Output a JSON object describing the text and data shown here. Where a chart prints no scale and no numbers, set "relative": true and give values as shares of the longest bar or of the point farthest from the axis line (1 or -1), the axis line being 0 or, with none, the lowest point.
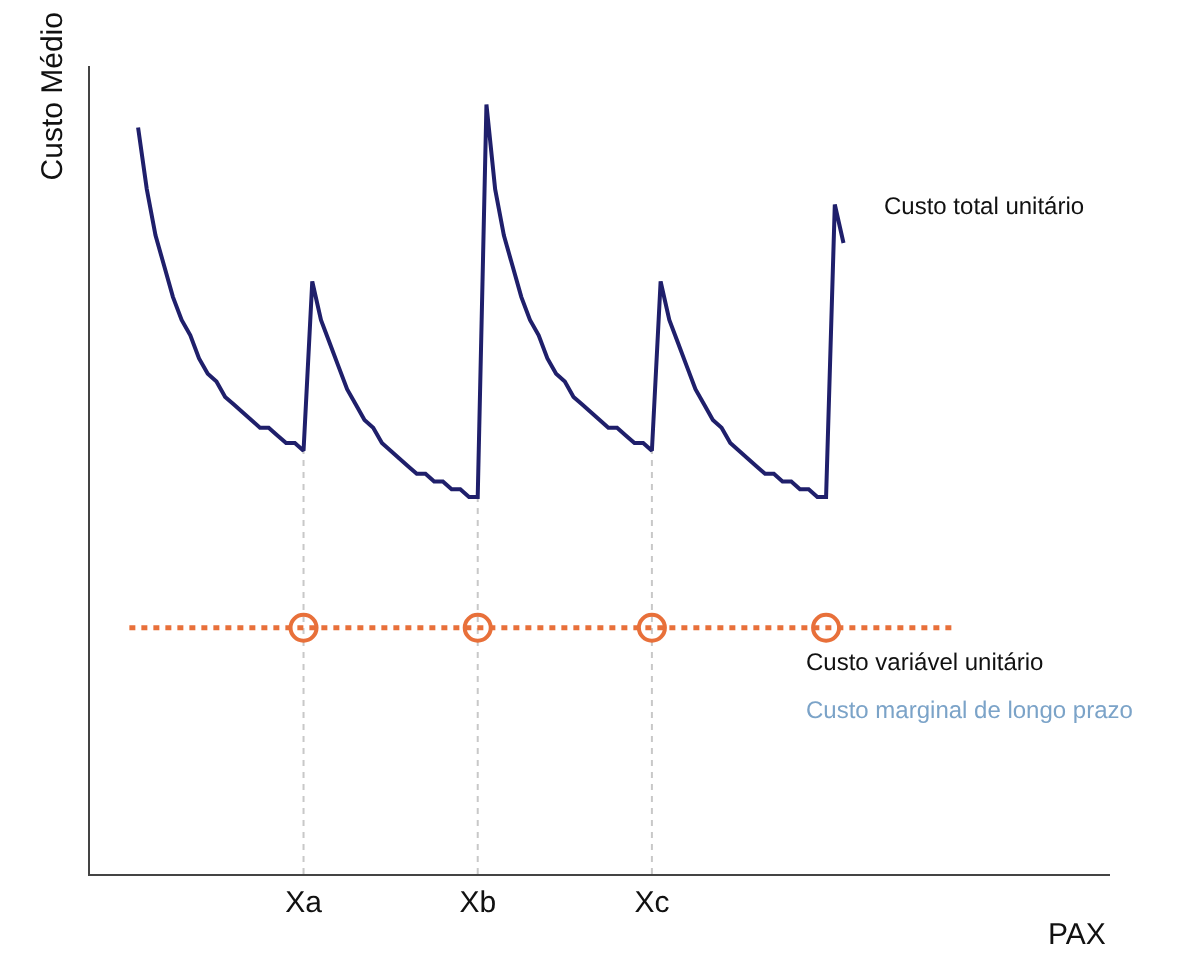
{
  "chart_data": {
    "type": "line",
    "relative": true,
    "xlabel": "PAX",
    "ylabel": "Custo Médio",
    "categories": [
      null,
      null,
      null,
      null,
      null,
      null,
      null,
      null,
      null,
      null,
      null,
      null,
      null,
      null,
      null,
      null,
      null,
      null,
      null,
      null,
      "Xa",
      null,
      null,
      null,
      null,
      null,
      null,
      null,
      null,
      null,
      null,
      null,
      null,
      null,
      null,
      null,
      null,
      null,
      null,
      null,
      "Xb",
      null,
      null,
      null,
      null,
      null,
      null,
      null,
      null,
      null,
      null,
      null,
      null,
      null,
      null,
      null,
      null,
      null,
      null,
      null,
      "Xc",
      null,
      null,
      null,
      null,
      null,
      null,
      null,
      null,
      null,
      null,
      null,
      null,
      null,
      null,
      null,
      null,
      null,
      null,
      null,
      null,
      null,
      null,
      null,
      null,
      null,
      null,
      null,
      null,
      null,
      null,
      null,
      null,
      null,
      null,
      null,
      null,
      null,
      null,
      null,
      null,
      null,
      null,
      null,
      null,
      null,
      null,
      null,
      null,
      null,
      null,
      null,
      null
    ],
    "series": [
      {
        "name": "Custo total unitário",
        "color": "#1f1f6b",
        "line_style": "solid",
        "marker": "none",
        "values": [
          null,
          0.97,
          0.89,
          0.83,
          0.79,
          0.75,
          0.72,
          0.7,
          0.67,
          0.65,
          0.64,
          0.62,
          0.61,
          0.6,
          0.59,
          0.58,
          0.58,
          0.57,
          0.56,
          0.56,
          0.55,
          0.77,
          0.72,
          0.69,
          0.66,
          0.63,
          0.61,
          0.59,
          0.58,
          0.56,
          0.55,
          0.54,
          0.53,
          0.52,
          0.52,
          0.51,
          0.51,
          0.5,
          0.5,
          0.49,
          0.49,
          1.0,
          0.89,
          0.83,
          0.79,
          0.75,
          0.72,
          0.7,
          0.67,
          0.65,
          0.64,
          0.62,
          0.61,
          0.6,
          0.59,
          0.58,
          0.58,
          0.57,
          0.56,
          0.56,
          0.55,
          0.77,
          0.72,
          0.69,
          0.66,
          0.63,
          0.61,
          0.59,
          0.58,
          0.56,
          0.55,
          0.54,
          0.53,
          0.52,
          0.52,
          0.51,
          0.51,
          0.5,
          0.5,
          0.49,
          0.49,
          0.87,
          0.82,
          null,
          null,
          null,
          null,
          null,
          null,
          null,
          null,
          null,
          null,
          null,
          null,
          null,
          null,
          null,
          null,
          null,
          null,
          null,
          null,
          null,
          null,
          null,
          null,
          null,
          null,
          null,
          null,
          null,
          null
        ]
      },
      {
        "name": "Custo variável unitário",
        "color": "#e8703a",
        "line_style": "dotted",
        "marker": "none",
        "values": [
          0.32,
          0.32,
          0.32,
          0.32,
          0.32,
          0.32,
          0.32,
          0.32,
          0.32,
          0.32,
          0.32,
          0.32,
          0.32,
          0.32,
          0.32,
          0.32,
          0.32,
          0.32,
          0.32,
          0.32,
          0.32,
          0.32,
          0.32,
          0.32,
          0.32,
          0.32,
          0.32,
          0.32,
          0.32,
          0.32,
          0.32,
          0.32,
          0.32,
          0.32,
          0.32,
          0.32,
          0.32,
          0.32,
          0.32,
          0.32,
          0.32,
          0.32,
          0.32,
          0.32,
          0.32,
          0.32,
          0.32,
          0.32,
          0.32,
          0.32,
          0.32,
          0.32,
          0.32,
          0.32,
          0.32,
          0.32,
          0.32,
          0.32,
          0.32,
          0.32,
          0.32,
          0.32,
          0.32,
          0.32,
          0.32,
          0.32,
          0.32,
          0.32,
          0.32,
          0.32,
          0.32,
          0.32,
          0.32,
          0.32,
          0.32,
          0.32,
          0.32,
          0.32,
          0.32,
          0.32,
          0.32,
          0.32,
          0.32,
          0.32,
          0.32,
          0.32,
          0.32,
          0.32,
          0.32,
          0.32,
          0.32,
          0.32,
          0.32,
          0.32,
          0.32,
          0.32,
          null,
          null,
          null,
          null,
          null,
          null,
          null,
          null,
          null,
          null,
          null,
          null,
          null,
          null,
          null,
          null,
          null
        ]
      },
      {
        "type": "scatter",
        "color": "#e8703a",
        "marker": "circle",
        "values": [
          null,
          null,
          null,
          null,
          null,
          null,
          null,
          null,
          null,
          null,
          null,
          null,
          null,
          null,
          null,
          null,
          null,
          null,
          null,
          null,
          0.32,
          null,
          null,
          null,
          null,
          null,
          null,
          null,
          null,
          null,
          null,
          null,
          null,
          null,
          null,
          null,
          null,
          null,
          null,
          null,
          0.32,
          null,
          null,
          null,
          null,
          null,
          null,
          null,
          null,
          null,
          null,
          null,
          null,
          null,
          null,
          null,
          null,
          null,
          null,
          null,
          0.32,
          null,
          null,
          null,
          null,
          null,
          null,
          null,
          null,
          null,
          null,
          null,
          null,
          null,
          null,
          null,
          null,
          null,
          null,
          null,
          0.32,
          null,
          null,
          null,
          null,
          null,
          null,
          null,
          null,
          null,
          null,
          null,
          null,
          null,
          null,
          null,
          null,
          null,
          null,
          null,
          null,
          null,
          null,
          null,
          null,
          null,
          null,
          null,
          null,
          null,
          null,
          null,
          null
        ]
      }
    ],
    "ref_lines": [
      {
        "axis": "x",
        "value": "Xa",
        "color": "#c8c8c8",
        "line_style": "dotted"
      },
      {
        "axis": "x",
        "value": "Xb",
        "color": "#c8c8c8",
        "line_style": "dotted"
      },
      {
        "axis": "x",
        "value": "Xc",
        "color": "#c8c8c8",
        "line_style": "dotted"
      }
    ],
    "annotations": [
      "Custo marginal de longo prazo"
    ],
    "grid": false,
    "legend": false
  }
}
